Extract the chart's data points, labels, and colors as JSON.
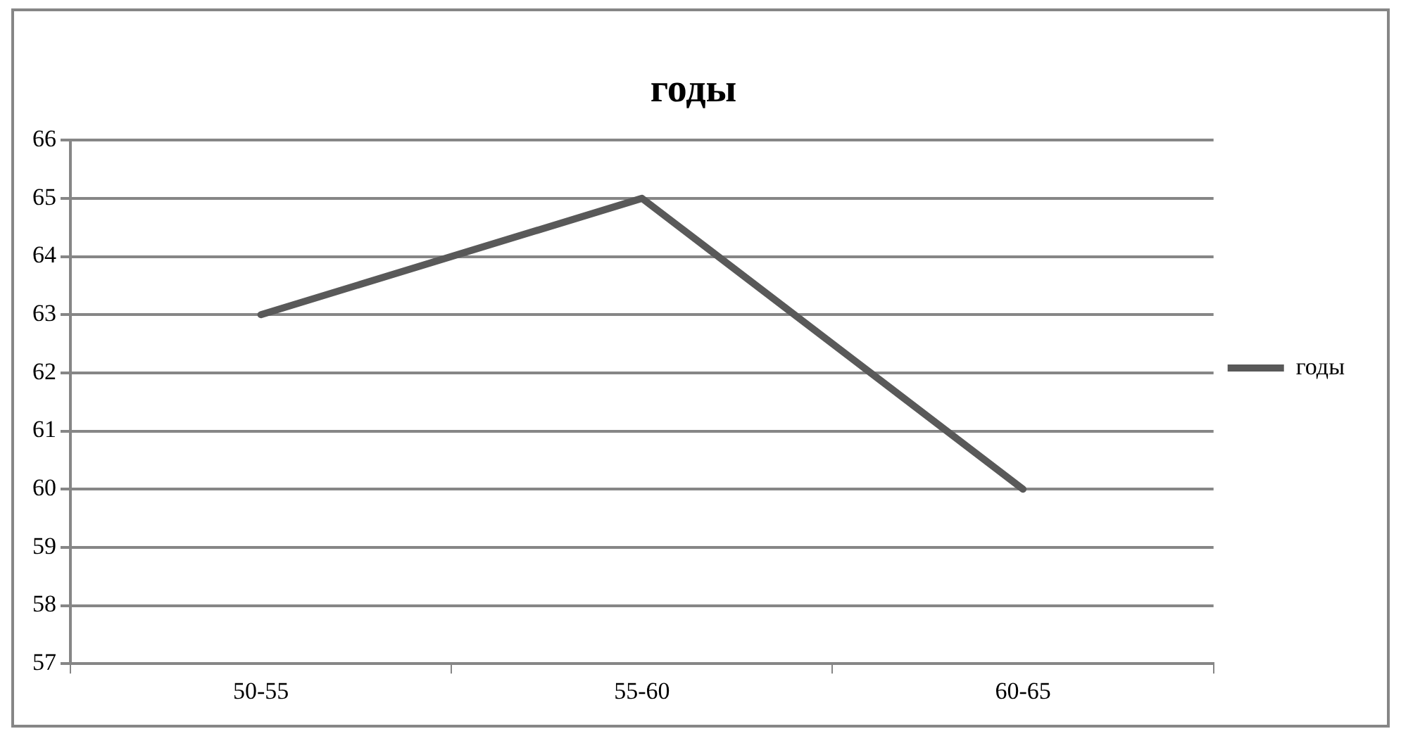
{
  "chart_data": {
    "type": "line",
    "title": "годы",
    "categories": [
      "50-55",
      "55-60",
      "60-65"
    ],
    "series": [
      {
        "name": "годы",
        "color": "#595959",
        "values": [
          63,
          65,
          60
        ]
      }
    ],
    "ylim": [
      57,
      66
    ],
    "yticks": [
      57,
      58,
      59,
      60,
      61,
      62,
      63,
      64,
      65,
      66
    ],
    "grid": "y",
    "legend": "right",
    "marker": "none",
    "line_style": "solid"
  }
}
